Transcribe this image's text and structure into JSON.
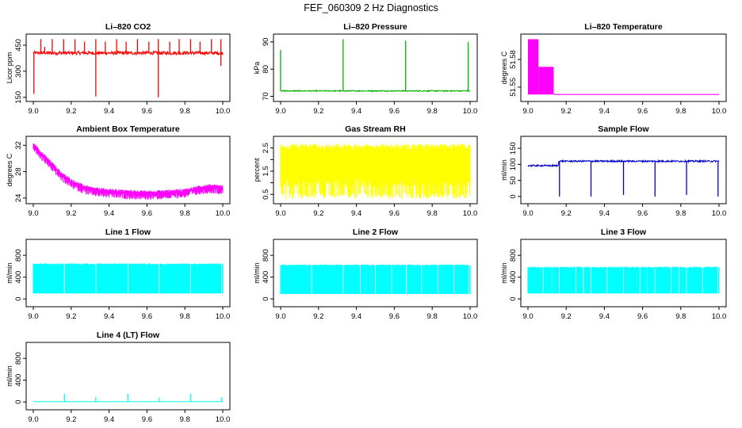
{
  "figure": {
    "title": "FEF_060309  2 Hz Diagnostics"
  },
  "chart_data": [
    {
      "id": "co2",
      "type": "line",
      "title": "Li–820 CO2",
      "ylabel": "Licor ppm",
      "color": "#ff0000",
      "xlim": [
        9.0,
        10.0
      ],
      "ylim": [
        140,
        500
      ],
      "xticks": [
        9.0,
        9.2,
        9.4,
        9.6,
        9.8,
        10.0
      ],
      "xticklabels": [
        "9.0",
        "9.2",
        "9.4",
        "9.6",
        "9.8",
        "10.0"
      ],
      "yticks": [
        150,
        300,
        450
      ],
      "yticklabels": [
        "150",
        "300",
        "450"
      ],
      "style": "noisy",
      "baseline": 405,
      "noise": 10,
      "spikes_up": [
        [
          9.04,
          485
        ],
        [
          9.06,
          440
        ],
        [
          9.1,
          485
        ],
        [
          9.16,
          485
        ],
        [
          9.22,
          485
        ],
        [
          9.27,
          470
        ],
        [
          9.33,
          485
        ],
        [
          9.38,
          470
        ],
        [
          9.44,
          485
        ],
        [
          9.49,
          470
        ],
        [
          9.55,
          485
        ],
        [
          9.61,
          470
        ],
        [
          9.66,
          485
        ],
        [
          9.72,
          470
        ],
        [
          9.77,
          485
        ],
        [
          9.83,
          485
        ],
        [
          9.88,
          470
        ],
        [
          9.94,
          485
        ],
        [
          9.99,
          485
        ]
      ],
      "spikes_down": [
        [
          9.003,
          170
        ],
        [
          9.33,
          155
        ],
        [
          9.66,
          150
        ],
        [
          9.99,
          330
        ]
      ]
    },
    {
      "id": "pressure",
      "type": "line",
      "title": "Li–820 Pressure",
      "ylabel": "kPa",
      "color": "#00b400",
      "xlim": [
        9.0,
        10.0
      ],
      "ylim": [
        69,
        92
      ],
      "xticks": [
        9.0,
        9.2,
        9.4,
        9.6,
        9.8,
        10.0
      ],
      "xticklabels": [
        "9.0",
        "9.2",
        "9.4",
        "9.6",
        "9.8",
        "10.0"
      ],
      "yticks": [
        70,
        80,
        90
      ],
      "yticklabels": [
        "70",
        "80",
        "90"
      ],
      "style": "noisy",
      "baseline": 72.0,
      "noise": 0.2,
      "spikes_up": [
        [
          9.0,
          87
        ],
        [
          9.33,
          91
        ],
        [
          9.66,
          90.5
        ],
        [
          9.99,
          90
        ]
      ],
      "spikes_down": []
    },
    {
      "id": "licor_temp",
      "type": "step",
      "title": "Li–820 Temperature",
      "ylabel": "degrees C",
      "color": "#ff00ff",
      "xlim": [
        9.0,
        10.0
      ],
      "ylim": [
        51.537,
        51.605
      ],
      "xticks": [
        9.0,
        9.2,
        9.4,
        9.6,
        9.8,
        10.0
      ],
      "xticklabels": [
        "9.0",
        "9.2",
        "9.4",
        "9.6",
        "9.8",
        "10.0"
      ],
      "yticks": [
        51.55,
        51.58
      ],
      "yticklabels": [
        "51.55",
        "51.58"
      ],
      "bands": [
        [
          9.0,
          9.055,
          51.542,
          51.602
        ],
        [
          9.055,
          9.135,
          51.542,
          51.572
        ]
      ],
      "after": [
        9.135,
        10.0,
        51.542
      ]
    },
    {
      "id": "box_temp",
      "type": "line",
      "title": "Ambient Box Temperature",
      "ylabel": "degrees C",
      "color": "#ff00ff",
      "xlim": [
        9.0,
        10.0
      ],
      "ylim": [
        23.5,
        33
      ],
      "xticks": [
        9.0,
        9.2,
        9.4,
        9.6,
        9.8,
        10.0
      ],
      "xticklabels": [
        "9.0",
        "9.2",
        "9.4",
        "9.6",
        "9.8",
        "10.0"
      ],
      "yticks": [
        24,
        28,
        32
      ],
      "yticklabels": [
        "24",
        "28",
        "32"
      ],
      "style": "curve",
      "curve": [
        [
          9.0,
          32
        ],
        [
          9.05,
          30.5
        ],
        [
          9.1,
          29
        ],
        [
          9.15,
          27.5
        ],
        [
          9.2,
          26.5
        ],
        [
          9.25,
          25.8
        ],
        [
          9.3,
          25.3
        ],
        [
          9.35,
          25.1
        ],
        [
          9.4,
          25.0
        ],
        [
          9.5,
          24.8
        ],
        [
          9.6,
          24.7
        ],
        [
          9.7,
          24.8
        ],
        [
          9.8,
          25.0
        ],
        [
          9.85,
          25.3
        ],
        [
          9.9,
          25.6
        ],
        [
          9.95,
          25.7
        ],
        [
          10.0,
          25.5
        ]
      ],
      "noise": 0.45,
      "spread_down": 1.0
    },
    {
      "id": "rh",
      "type": "band",
      "title": "Gas Stream RH",
      "ylabel": "percent",
      "color": "#ffff00",
      "xlim": [
        9.0,
        10.0
      ],
      "ylim": [
        0.2,
        2.9
      ],
      "xticks": [
        9.0,
        9.2,
        9.4,
        9.6,
        9.8,
        10.0
      ],
      "xticklabels": [
        "9.0",
        "9.2",
        "9.4",
        "9.6",
        "9.8",
        "10.0"
      ],
      "yticks": [
        0.5,
        1.0,
        1.5,
        2.0,
        2.5
      ],
      "yticklabels": [
        "0.5",
        "1.5",
        "2.5"
      ],
      "style": "rh",
      "top": 2.55,
      "bottom": 1.0,
      "low": 0.3
    },
    {
      "id": "sample_flow",
      "type": "line",
      "title": "Sample Flow",
      "ylabel": "ml/min",
      "color": "#0000cc",
      "xlim": [
        9.0,
        10.0
      ],
      "ylim": [
        -15,
        180
      ],
      "xticks": [
        9.0,
        9.2,
        9.4,
        9.6,
        9.8,
        10.0
      ],
      "xticklabels": [
        "9.0",
        "9.2",
        "9.4",
        "9.6",
        "9.8",
        "10.0"
      ],
      "yticks": [
        0,
        50,
        100,
        150
      ],
      "yticklabels": [
        "0",
        "50",
        "100",
        "150"
      ],
      "style": "noisy",
      "baseline": 105,
      "noise": 2.5,
      "step": [
        9.16,
        96,
        110
      ],
      "spikes_down": [
        [
          9.165,
          0
        ],
        [
          9.33,
          0
        ],
        [
          9.5,
          5
        ],
        [
          9.665,
          0
        ],
        [
          9.83,
          5
        ],
        [
          9.995,
          0
        ]
      ],
      "spikes_up": []
    },
    {
      "id": "line1",
      "type": "band",
      "title": "Line 1 Flow",
      "ylabel": "ml/min",
      "color": "#00ffff",
      "xlim": [
        9.0,
        10.0
      ],
      "ylim": [
        -100,
        1050
      ],
      "xticks": [
        9.0,
        9.2,
        9.4,
        9.6,
        9.8,
        10.0
      ],
      "xticklabels": [
        "9.0",
        "9.2",
        "9.4",
        "9.6",
        "9.8",
        "10.0"
      ],
      "yticks": [
        0,
        400,
        800
      ],
      "yticklabels": [
        "0",
        "400",
        "800"
      ],
      "style": "flow",
      "top": 640,
      "bottom": 100,
      "gaps": [
        9.165,
        9.33,
        9.5,
        9.665,
        9.83,
        9.995
      ]
    },
    {
      "id": "line2",
      "type": "band",
      "title": "Line 2 Flow",
      "ylabel": "ml/min",
      "color": "#00ffff",
      "xlim": [
        9.0,
        10.0
      ],
      "ylim": [
        -100,
        1050
      ],
      "xticks": [
        9.0,
        9.2,
        9.4,
        9.6,
        9.8,
        10.0
      ],
      "xticklabels": [
        "9.0",
        "9.2",
        "9.4",
        "9.6",
        "9.8",
        "10.0"
      ],
      "yticks": [
        0,
        400,
        800
      ],
      "yticklabels": [
        "0",
        "400",
        "800"
      ],
      "style": "flow",
      "top": 620,
      "bottom": 90,
      "gaps": [
        9.165,
        9.33,
        9.42,
        9.5,
        9.585,
        9.665,
        9.745,
        9.83,
        9.915,
        9.995
      ]
    },
    {
      "id": "line3",
      "type": "band",
      "title": "Line 3 Flow",
      "ylabel": "ml/min",
      "color": "#00ffff",
      "xlim": [
        9.0,
        10.0
      ],
      "ylim": [
        -100,
        1050
      ],
      "xticks": [
        9.0,
        9.2,
        9.4,
        9.6,
        9.8,
        10.0
      ],
      "xticklabels": [
        "9.0",
        "9.2",
        "9.4",
        "9.6",
        "9.8",
        "10.0"
      ],
      "yticks": [
        0,
        400,
        800
      ],
      "yticklabels": [
        "0",
        "400",
        "800"
      ],
      "style": "flow",
      "top": 580,
      "bottom": 100,
      "gaps": [
        9.08,
        9.125,
        9.165,
        9.25,
        9.29,
        9.33,
        9.415,
        9.5,
        9.585,
        9.625,
        9.665,
        9.75,
        9.79,
        9.83,
        9.915,
        9.995
      ]
    },
    {
      "id": "line4",
      "type": "line",
      "title": "Line 4 (LT) Flow",
      "ylabel": "ml/min",
      "color": "#00ffff",
      "xlim": [
        9.0,
        10.0
      ],
      "ylim": [
        -100,
        1050
      ],
      "xticks": [
        9.0,
        9.2,
        9.4,
        9.6,
        9.8,
        10.0
      ],
      "xticklabels": [
        "9.0",
        "9.2",
        "9.4",
        "9.6",
        "9.8",
        "10.0"
      ],
      "yticks": [
        0,
        400,
        800
      ],
      "yticklabels": [
        "0",
        "400",
        "800"
      ],
      "style": "noisy",
      "baseline": 5,
      "noise": 1.5,
      "spikes_up": [
        [
          9.165,
          150
        ],
        [
          9.33,
          90
        ],
        [
          9.5,
          150
        ],
        [
          9.665,
          80
        ],
        [
          9.83,
          150
        ],
        [
          9.995,
          90
        ]
      ],
      "spikes_down": []
    }
  ]
}
